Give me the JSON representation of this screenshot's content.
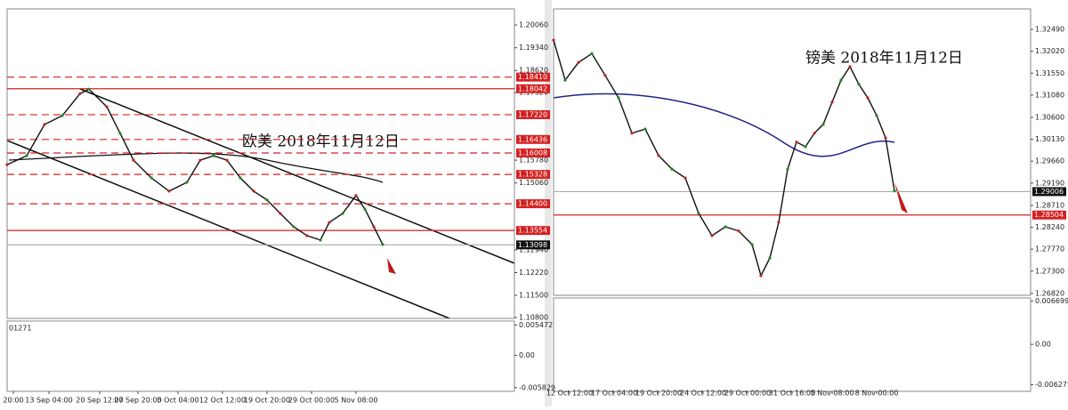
{
  "chart_data": [
    {
      "type": "line",
      "title": "欧美  2018年11月12日",
      "color": "#111111",
      "x": [
        0,
        22,
        42,
        62,
        82,
        92,
        112,
        127,
        142,
        162,
        182,
        202,
        217,
        232,
        247,
        262,
        277,
        292,
        307,
        322,
        337,
        352,
        362,
        377,
        392,
        402,
        412,
        422
      ],
      "values": [
        1.1564,
        1.1592,
        1.1691,
        1.1719,
        1.1789,
        1.1803,
        1.1747,
        1.1663,
        1.1578,
        1.1522,
        1.148,
        1.1508,
        1.1578,
        1.1592,
        1.1578,
        1.1522,
        1.148,
        1.1452,
        1.1409,
        1.1367,
        1.1339,
        1.1325,
        1.1381,
        1.1409,
        1.1466,
        1.1423,
        1.1367,
        1.1311
      ],
      "xlim": [
        0,
        570
      ],
      "ylim": [
        1.1077,
        1.2057
      ],
      "xticks": [
        {
          "value": 7,
          "label": "20:00"
        },
        {
          "value": 47,
          "label": "13 Sep 04:00"
        },
        {
          "value": 104,
          "label": "20 Sep 12:00"
        },
        {
          "value": 147,
          "label": "27 Sep 20:00"
        },
        {
          "value": 192,
          "label": "5 Oct 04:00"
        },
        {
          "value": 242,
          "label": "12 Oct 12:00"
        },
        {
          "value": 292,
          "label": "19 Oct 20:00"
        },
        {
          "value": 342,
          "label": "29 Oct 00:00"
        },
        {
          "value": 392,
          "label": "5 Nov 08:00"
        }
      ],
      "yticks": [
        {
          "value": 1.2006,
          "label": "1.20060"
        },
        {
          "value": 1.1934,
          "label": "1.19340"
        },
        {
          "value": 1.1862,
          "label": "1.18620"
        },
        {
          "value": 1.1792,
          "label": "1.17920"
        },
        {
          "value": 1.1578,
          "label": "1.15780"
        },
        {
          "value": 1.1506,
          "label": "1.15060"
        },
        {
          "value": 1.1294,
          "label": "1.12940"
        },
        {
          "value": 1.1222,
          "label": "1.12220"
        },
        {
          "value": 1.115,
          "label": "1.11500"
        },
        {
          "value": 1.108,
          "label": "1.10800"
        }
      ],
      "levels": [
        {
          "value": 1.1841,
          "label": "1.18410",
          "style": "dashed",
          "color": "#d42020"
        },
        {
          "value": 1.18042,
          "label": "1.18042",
          "style": "solid",
          "color": "#d42020"
        },
        {
          "value": 1.1722,
          "label": "1.17220",
          "style": "dashed",
          "color": "#d42020"
        },
        {
          "value": 1.16436,
          "label": "1.16436",
          "style": "dashed",
          "color": "#d42020"
        },
        {
          "value": 1.16008,
          "label": "1.16008",
          "style": "dashed",
          "color": "#d42020"
        },
        {
          "value": 1.15328,
          "label": "1.15328",
          "style": "dashed",
          "color": "#d42020"
        },
        {
          "value": 1.144,
          "label": "1.14400",
          "style": "dashed",
          "color": "#d42020"
        },
        {
          "value": 1.13554,
          "label": "1.13554",
          "style": "solid",
          "color": "#d42020"
        },
        {
          "value": 1.13098,
          "label": "1.13098",
          "style": "solid",
          "color": "#111111"
        }
      ],
      "oscillator": {
        "label": "01271",
        "ylim": [
          -0.0065,
          0.0062
        ],
        "yticks": [
          {
            "value": 0.005472,
            "label": "0.005472"
          },
          {
            "value": 0,
            "label": "0.00"
          },
          {
            "value": -0.005829,
            "label": "-0.005829"
          }
        ]
      }
    },
    {
      "type": "line",
      "title": "镑美  2018年11月12日",
      "color": "#111111",
      "x": [
        0,
        13,
        28,
        43,
        58,
        73,
        88,
        103,
        118,
        133,
        148,
        163,
        178,
        193,
        208,
        223,
        233,
        243,
        253,
        263,
        273,
        283,
        293,
        303,
        313,
        323,
        333,
        343,
        353,
        363,
        373,
        383
      ],
      "values": [
        1.3226,
        1.314,
        1.3178,
        1.3197,
        1.315,
        1.3102,
        1.3026,
        1.3035,
        1.2978,
        1.2949,
        1.293,
        1.2854,
        1.2806,
        1.2825,
        1.2816,
        1.2787,
        1.272,
        1.2758,
        1.2835,
        1.2949,
        1.3007,
        1.2997,
        1.3026,
        1.3045,
        1.3093,
        1.314,
        1.3169,
        1.3131,
        1.3102,
        1.3064,
        1.3016,
        1.2902
      ],
      "xlim": [
        0,
        536
      ],
      "ylim": [
        1.2678,
        1.3293
      ],
      "xticks": [
        {
          "value": 18,
          "label": "12 Oct 12:00"
        },
        {
          "value": 68,
          "label": "17 Oct 04:00"
        },
        {
          "value": 118,
          "label": "19 Oct 20:00"
        },
        {
          "value": 168,
          "label": "24 Oct 12:00"
        },
        {
          "value": 218,
          "label": "29 Oct 00:00"
        },
        {
          "value": 268,
          "label": "31 Oct 16:00"
        },
        {
          "value": 313,
          "label": "5 Nov 08:00"
        },
        {
          "value": 363,
          "label": "8 Nov 00:00"
        }
      ],
      "yticks": [
        {
          "value": 1.3249,
          "label": "1.32490"
        },
        {
          "value": 1.3202,
          "label": "1.32020"
        },
        {
          "value": 1.3155,
          "label": "1.31550"
        },
        {
          "value": 1.3108,
          "label": "1.31080"
        },
        {
          "value": 1.306,
          "label": "1.30600"
        },
        {
          "value": 1.3013,
          "label": "1.30130"
        },
        {
          "value": 1.2966,
          "label": "1.29660"
        },
        {
          "value": 1.2919,
          "label": "1.29190"
        },
        {
          "value": 1.2871,
          "label": "1.28710"
        },
        {
          "value": 1.2824,
          "label": "1.28240"
        },
        {
          "value": 1.2777,
          "label": "1.27770"
        },
        {
          "value": 1.273,
          "label": "1.27300"
        },
        {
          "value": 1.2682,
          "label": "1.26820"
        }
      ],
      "levels": [
        {
          "value": 1.29006,
          "label": "1.29006",
          "style": "solid",
          "color": "#111111"
        },
        {
          "value": 1.28504,
          "label": "1.28504",
          "style": "solid",
          "color": "#d42020"
        }
      ],
      "oscillator": {
        "ylim": [
          -0.0073,
          0.0072
        ],
        "yticks": [
          {
            "value": 0.006699,
            "label": "0.006699"
          },
          {
            "value": 0,
            "label": "0.00"
          },
          {
            "value": -0.006275,
            "label": "-0.006275"
          }
        ]
      }
    }
  ]
}
